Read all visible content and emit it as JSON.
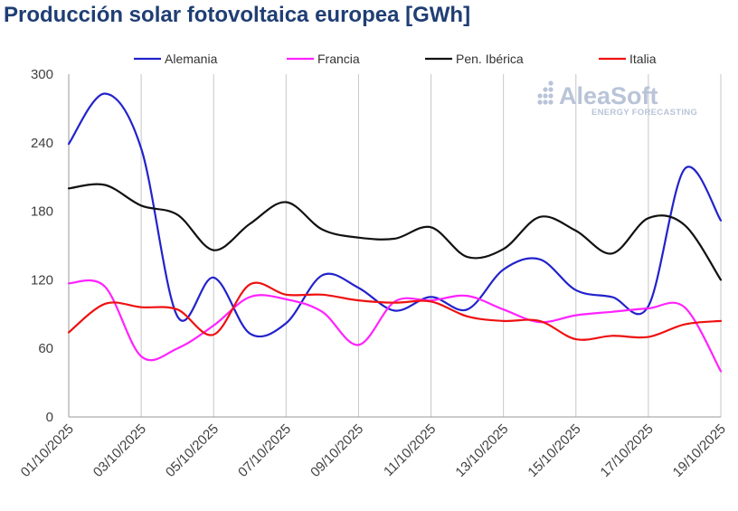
{
  "chart_data": {
    "type": "line",
    "title": "Producción solar fotovoltaica europea [GWh]",
    "xlabel": "",
    "ylabel": "",
    "ylim": [
      0,
      300
    ],
    "yticks": [
      0,
      60,
      120,
      180,
      240,
      300
    ],
    "x_tick_labels": [
      "01/10/2025",
      "03/10/2025",
      "05/10/2025",
      "07/10/2025",
      "09/10/2025",
      "11/10/2025",
      "13/10/2025",
      "15/10/2025",
      "17/10/2025",
      "19/10/2025"
    ],
    "x": [
      "01/10/2025",
      "02/10/2025",
      "03/10/2025",
      "04/10/2025",
      "05/10/2025",
      "06/10/2025",
      "07/10/2025",
      "08/10/2025",
      "09/10/2025",
      "10/10/2025",
      "11/10/2025",
      "12/10/2025",
      "13/10/2025",
      "14/10/2025",
      "15/10/2025",
      "16/10/2025",
      "17/10/2025",
      "18/10/2025",
      "19/10/2025"
    ],
    "grid": "vertical",
    "legend_position": "top",
    "series": [
      {
        "name": "Alemania",
        "color": "#2222cc",
        "values": [
          239,
          283,
          235,
          88,
          122,
          73,
          82,
          124,
          113,
          93,
          105,
          94,
          129,
          138,
          111,
          105,
          97,
          217,
          172
        ]
      },
      {
        "name": "Francia",
        "color": "#ff22ff",
        "values": [
          117,
          114,
          53,
          60,
          80,
          105,
          103,
          92,
          63,
          101,
          102,
          106,
          94,
          83,
          89,
          92,
          95,
          96,
          40
        ]
      },
      {
        "name": "Pen. Ibérica",
        "color": "#111111",
        "values": [
          200,
          203,
          185,
          177,
          146,
          169,
          188,
          164,
          157,
          156,
          166,
          140,
          147,
          175,
          163,
          143,
          174,
          168,
          120
        ]
      },
      {
        "name": "Italia",
        "color": "#ee1111",
        "values": [
          74,
          99,
          96,
          94,
          72,
          116,
          107,
          107,
          102,
          100,
          101,
          88,
          84,
          84,
          68,
          71,
          70,
          81,
          84
        ]
      }
    ]
  },
  "logo": {
    "name": "AleaSoft",
    "tagline": "ENERGY FORECASTING",
    "icon": "dots-grid-icon"
  }
}
